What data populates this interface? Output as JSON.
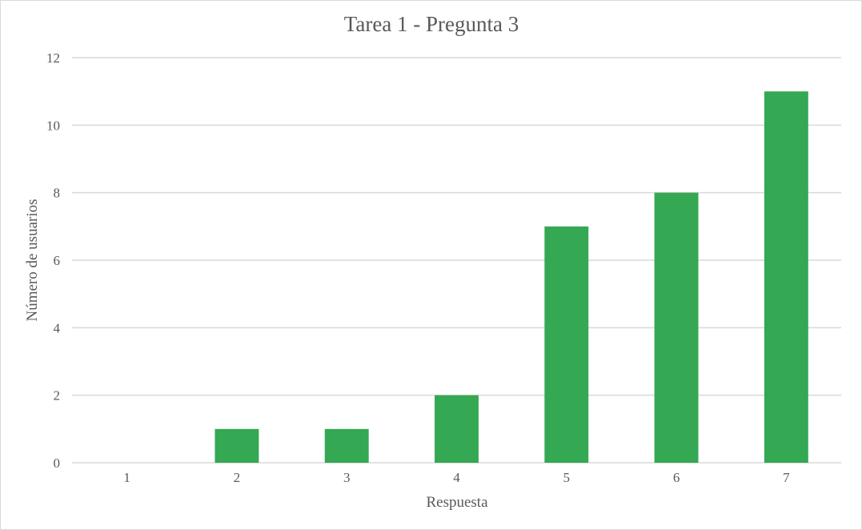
{
  "chart_data": {
    "type": "bar",
    "title": "Tarea 1 - Pregunta 3",
    "xlabel": "Respuesta",
    "ylabel": "Número de usuarios",
    "categories": [
      "1",
      "2",
      "3",
      "4",
      "5",
      "6",
      "7"
    ],
    "values": [
      0,
      1,
      1,
      2,
      7,
      8,
      11
    ],
    "ylim": [
      0,
      12
    ],
    "yticks": [
      "0",
      "2",
      "4",
      "6",
      "8",
      "10",
      "12"
    ],
    "grid": true,
    "legend": "none",
    "colors": {
      "bar": "#34a853",
      "gridline": "#d9d9d9",
      "text": "#595959",
      "border": "#d9d9d9"
    }
  }
}
